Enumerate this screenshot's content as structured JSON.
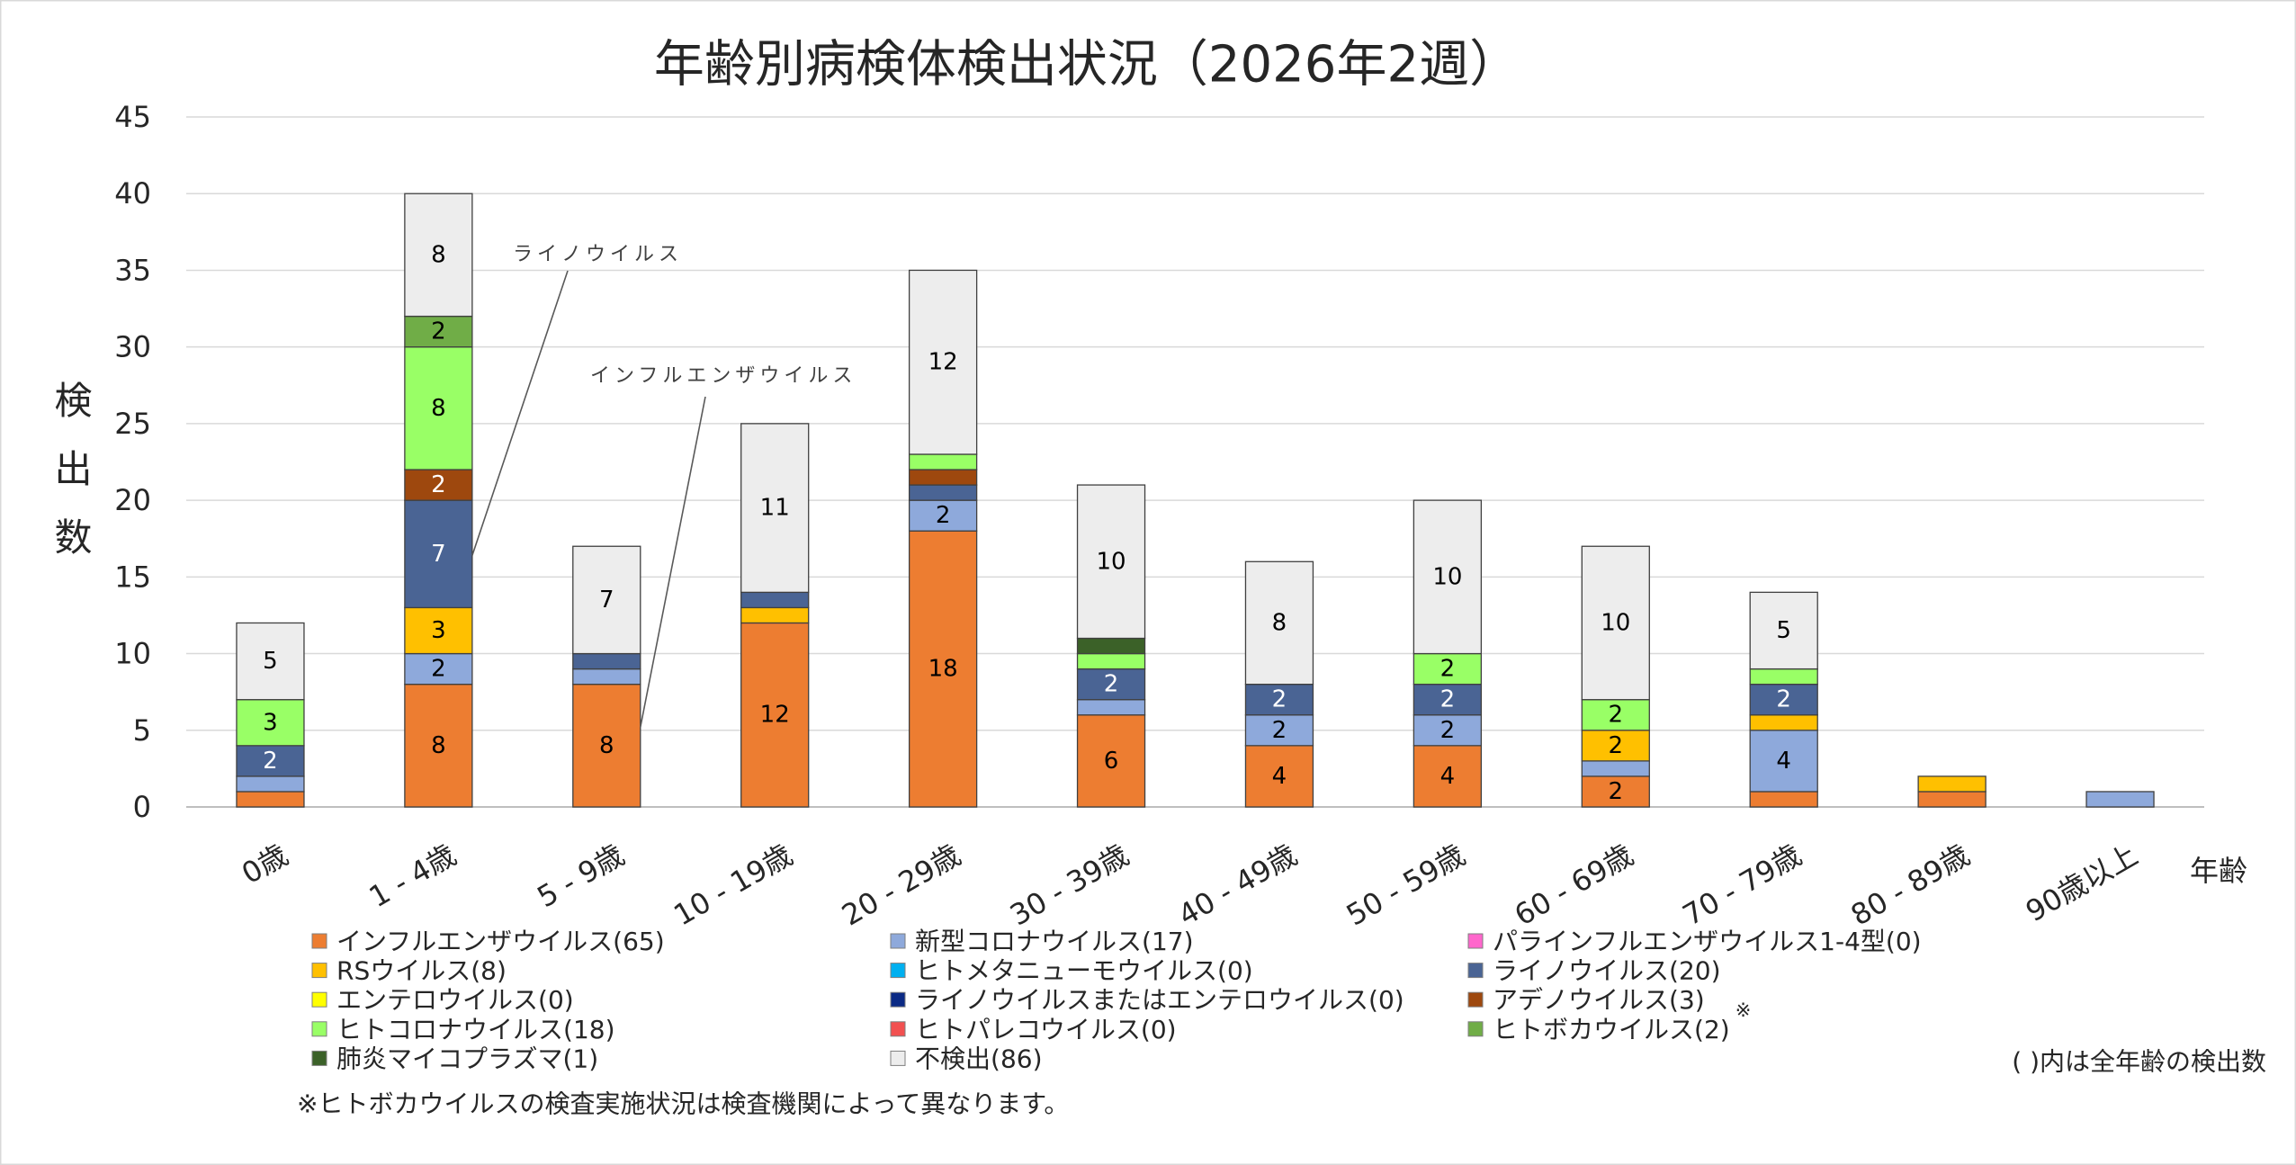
{
  "chart_data": {
    "type": "bar",
    "stacked": true,
    "title": "年齢別病検体検出状況（2026年2週）",
    "xlabel": "年齢",
    "ylabel": "検出数",
    "ylim": [
      0,
      45
    ],
    "yticks": [
      0,
      5,
      10,
      15,
      20,
      25,
      30,
      35,
      40,
      45
    ],
    "grid": true,
    "legend_position": "bottom",
    "categories": [
      "0歳",
      "1 - 4歳",
      "5 - 9歳",
      "10 - 19歳",
      "20 - 29歳",
      "30 - 39歳",
      "40 - 49歳",
      "50 - 59歳",
      "60 - 69歳",
      "70 - 79歳",
      "80 - 89歳",
      "90歳以上"
    ],
    "series": [
      {
        "name": "インフルエンザウイルス",
        "total": 65,
        "color": "#ED7D31",
        "values": [
          1,
          8,
          8,
          12,
          18,
          6,
          4,
          4,
          2,
          1,
          1,
          0
        ]
      },
      {
        "name": "新型コロナウイルス",
        "total": 17,
        "color": "#8EA9DB",
        "values": [
          1,
          2,
          1,
          0,
          2,
          1,
          2,
          2,
          1,
          4,
          0,
          1
        ]
      },
      {
        "name": "パラインフルエンザウイルス1-4型",
        "total": 0,
        "color": "#FF66CC",
        "values": [
          0,
          0,
          0,
          0,
          0,
          0,
          0,
          0,
          0,
          0,
          0,
          0
        ]
      },
      {
        "name": "RSウイルス",
        "total": 8,
        "color": "#FFC000",
        "values": [
          0,
          3,
          0,
          1,
          0,
          0,
          0,
          0,
          2,
          1,
          1,
          0
        ]
      },
      {
        "name": "ヒトメタニューモウイルス",
        "total": 0,
        "color": "#00B0F0",
        "values": [
          0,
          0,
          0,
          0,
          0,
          0,
          0,
          0,
          0,
          0,
          0,
          0
        ]
      },
      {
        "name": "ライノウイルス",
        "total": 20,
        "color": "#4A6494",
        "values": [
          2,
          7,
          1,
          1,
          1,
          2,
          2,
          2,
          0,
          2,
          0,
          0
        ]
      },
      {
        "name": "エンテロウイルス",
        "total": 0,
        "color": "#FFFF00",
        "values": [
          0,
          0,
          0,
          0,
          0,
          0,
          0,
          0,
          0,
          0,
          0,
          0
        ]
      },
      {
        "name": "ライノウイルスまたはエンテロウイルス",
        "total": 0,
        "color": "#0B2A85",
        "values": [
          0,
          0,
          0,
          0,
          0,
          0,
          0,
          0,
          0,
          0,
          0,
          0
        ]
      },
      {
        "name": "アデノウイルス",
        "total": 3,
        "color": "#9E480E",
        "values": [
          0,
          2,
          0,
          0,
          1,
          0,
          0,
          0,
          0,
          0,
          0,
          0
        ]
      },
      {
        "name": "ヒトコロナウイルス",
        "total": 18,
        "color": "#99FF66",
        "values": [
          3,
          8,
          0,
          0,
          1,
          1,
          0,
          2,
          2,
          1,
          0,
          0
        ]
      },
      {
        "name": "ヒトパレコウイルス",
        "total": 0,
        "color": "#F25050",
        "values": [
          0,
          0,
          0,
          0,
          0,
          0,
          0,
          0,
          0,
          0,
          0,
          0
        ]
      },
      {
        "name": "ヒトボカウイルス",
        "total": 2,
        "color": "#70AD47",
        "note_mark": "※",
        "values": [
          0,
          2,
          0,
          0,
          0,
          0,
          0,
          0,
          0,
          0,
          0,
          0
        ]
      },
      {
        "name": "肺炎マイコプラズマ",
        "total": 1,
        "color": "#3B6128",
        "values": [
          0,
          0,
          0,
          0,
          0,
          1,
          0,
          0,
          0,
          0,
          0,
          0
        ]
      },
      {
        "name": "不検出",
        "total": 86,
        "color": "#EDEDED",
        "values": [
          5,
          8,
          7,
          11,
          12,
          10,
          8,
          10,
          10,
          5,
          0,
          0
        ]
      }
    ],
    "annotations": [
      "ライノウイルス",
      "インフルエンザウイルス"
    ],
    "legend_note": "( )内は全年齢の検出数",
    "footnote": "※ヒトボカウイルスの検査実施状況は検査機関によって異なります。"
  }
}
